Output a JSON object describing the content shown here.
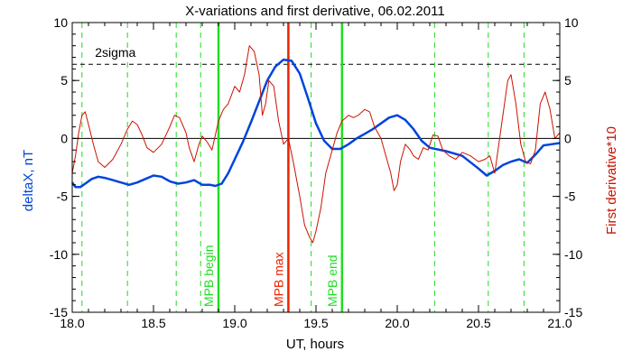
{
  "chart_data": {
    "type": "line",
    "title": "X-variations and first derivative, 06.02.2011",
    "xlabel": "UT, hours",
    "ylabel_left": "deltaX, nT",
    "ylabel_right": "First derivative*10",
    "xlim": [
      18.0,
      21.0
    ],
    "ylim": [
      -15,
      10
    ],
    "x_ticks": [
      "18.0",
      "18.5",
      "19.0",
      "19.5",
      "20.0",
      "20.5",
      "21.0"
    ],
    "y_ticks": [
      "-15",
      "-10",
      "-5",
      "0",
      "5",
      "10"
    ],
    "zero_line": 0,
    "threshold": {
      "label": "2sigma",
      "value": 6.4
    },
    "colors": {
      "deltaX": "#0044dd",
      "derivative": "#cc1100",
      "markers_green": "#22dd22",
      "mpb_max": "#ee2200",
      "threshold": "#000000"
    },
    "series": [
      {
        "color": "#0044dd",
        "x": [
          18.0,
          18.02,
          18.05,
          18.08,
          18.12,
          18.16,
          18.2,
          18.25,
          18.3,
          18.35,
          18.4,
          18.45,
          18.5,
          18.55,
          18.6,
          18.65,
          18.7,
          18.75,
          18.8,
          18.85,
          18.88,
          18.92,
          18.96,
          19.0,
          19.05,
          19.1,
          19.15,
          19.2,
          19.25,
          19.3,
          19.35,
          19.4,
          19.45,
          19.5,
          19.55,
          19.6,
          19.65,
          19.7,
          19.75,
          19.8,
          19.85,
          19.9,
          19.95,
          20.0,
          20.05,
          20.1,
          20.15,
          20.2,
          20.3,
          20.4,
          20.5,
          20.55,
          20.6,
          20.65,
          20.7,
          20.75,
          20.8,
          20.85,
          20.9,
          20.95,
          21.0
        ],
        "y": [
          -3.8,
          -4.2,
          -4.2,
          -3.9,
          -3.5,
          -3.3,
          -3.4,
          -3.6,
          -3.8,
          -4.0,
          -3.8,
          -3.5,
          -3.2,
          -3.3,
          -3.7,
          -3.9,
          -3.8,
          -3.6,
          -4.0,
          -4.0,
          -4.1,
          -3.9,
          -3.0,
          -1.8,
          -0.3,
          1.4,
          3.2,
          5.0,
          6.2,
          6.8,
          6.7,
          5.6,
          3.5,
          1.3,
          -0.2,
          -0.9,
          -0.9,
          -0.5,
          0.0,
          0.4,
          0.8,
          1.3,
          1.8,
          2.0,
          1.6,
          0.8,
          -0.2,
          -0.8,
          -1.1,
          -1.5,
          -2.6,
          -3.2,
          -2.8,
          -2.3,
          -2.0,
          -1.8,
          -2.1,
          -1.4,
          -0.6,
          -0.5,
          -0.4
        ]
      },
      {
        "color": "#cc1100",
        "x": [
          18.0,
          18.02,
          18.04,
          18.06,
          18.08,
          18.1,
          18.13,
          18.16,
          18.2,
          18.25,
          18.3,
          18.34,
          18.37,
          18.4,
          18.43,
          18.46,
          18.5,
          18.55,
          18.6,
          18.63,
          18.66,
          18.7,
          18.72,
          18.75,
          18.78,
          18.8,
          18.83,
          18.86,
          18.9,
          18.93,
          18.96,
          19.0,
          19.03,
          19.06,
          19.09,
          19.12,
          19.15,
          19.17,
          19.19,
          19.21,
          19.24,
          19.27,
          19.3,
          19.33,
          19.36,
          19.4,
          19.43,
          19.46,
          19.48,
          19.5,
          19.53,
          19.56,
          19.6,
          19.63,
          19.66,
          19.7,
          19.73,
          19.76,
          19.8,
          19.83,
          19.86,
          19.9,
          19.93,
          19.96,
          19.98,
          20.0,
          20.02,
          20.05,
          20.08,
          20.1,
          20.13,
          20.16,
          20.19,
          20.22,
          20.25,
          20.28,
          20.32,
          20.36,
          20.4,
          20.45,
          20.5,
          20.54,
          20.57,
          20.6,
          20.62,
          20.65,
          20.68,
          20.7,
          20.73,
          20.76,
          20.79,
          20.82,
          20.85,
          20.88,
          20.91,
          20.94,
          20.97,
          21.0
        ],
        "y": [
          -3.0,
          -1.5,
          0.5,
          2.0,
          2.3,
          1.2,
          -0.5,
          -2.0,
          -2.5,
          -1.8,
          -0.5,
          0.8,
          1.5,
          1.2,
          0.3,
          -0.8,
          -1.2,
          -0.5,
          1.0,
          2.0,
          1.8,
          0.5,
          -0.8,
          -2.0,
          -0.5,
          0.2,
          -0.3,
          -1.0,
          1.5,
          2.5,
          3.0,
          4.5,
          4.0,
          5.5,
          8.0,
          7.5,
          5.5,
          2.0,
          3.0,
          5.0,
          4.5,
          1.5,
          -0.5,
          0.0,
          -2.0,
          -5.0,
          -7.5,
          -8.5,
          -9.0,
          -8.0,
          -6.0,
          -3.0,
          -1.0,
          0.5,
          1.5,
          2.0,
          1.8,
          2.0,
          2.5,
          2.3,
          1.0,
          0.0,
          -1.5,
          -3.0,
          -4.5,
          -4.0,
          -2.0,
          -0.5,
          -1.0,
          -1.5,
          -1.8,
          -0.8,
          -1.0,
          0.3,
          0.2,
          -1.0,
          -1.5,
          -1.8,
          -1.2,
          -1.5,
          -2.0,
          -1.8,
          -1.5,
          -3.0,
          -1.0,
          2.0,
          5.0,
          5.5,
          3.0,
          -0.5,
          -2.0,
          -2.2,
          -1.0,
          3.0,
          4.0,
          2.5,
          0.0,
          0.5
        ]
      }
    ],
    "dashed_verticals": [
      18.06,
      18.34,
      18.64,
      18.79,
      19.47,
      20.23,
      20.56,
      20.78
    ],
    "markers": [
      {
        "x": 18.9,
        "label": "MPB begin",
        "color": "#22dd22"
      },
      {
        "x": 19.33,
        "label": "MPB max",
        "color": "#ee2200"
      },
      {
        "x": 19.66,
        "label": "MPB end",
        "color": "#22dd22"
      }
    ]
  }
}
